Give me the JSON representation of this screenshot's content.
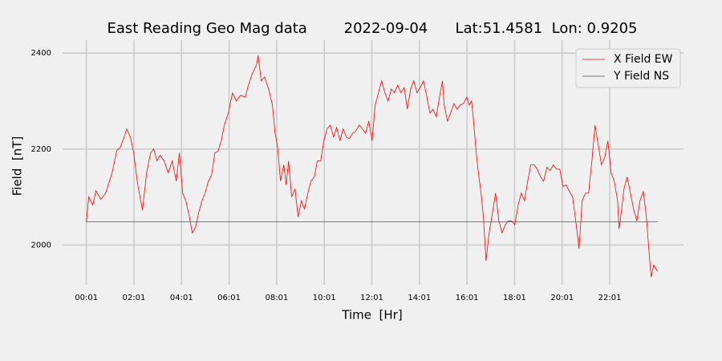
{
  "chart_data": {
    "type": "line",
    "title": "East Reading Geo Mag data        2022-09-04      Lat:51.4581  Lon: 0.9205",
    "xlabel": "Time  [Hr]",
    "ylabel": "Field  [nT]",
    "xlim": [
      -1.0,
      25.1
    ],
    "ylim": [
      1917,
      2427
    ],
    "xticks": [
      {
        "value": 0,
        "label": "00:01"
      },
      {
        "value": 2,
        "label": "02:01"
      },
      {
        "value": 4,
        "label": "04:01"
      },
      {
        "value": 6,
        "label": "06:01"
      },
      {
        "value": 8,
        "label": "08:01"
      },
      {
        "value": 10,
        "label": "10:01"
      },
      {
        "value": 12,
        "label": "12:01"
      },
      {
        "value": 14,
        "label": "14:01"
      },
      {
        "value": 16,
        "label": "16:01"
      },
      {
        "value": 18,
        "label": "18:01"
      },
      {
        "value": 20,
        "label": "20:01"
      },
      {
        "value": 22,
        "label": "22:01"
      }
    ],
    "yticks": [
      2000,
      2200,
      2400
    ],
    "grid": true,
    "legend": "upper right",
    "series": [
      {
        "name": "X Field EW",
        "color": "#ff0000",
        "x": [
          0,
          0.1,
          0.27,
          0.4,
          0.61,
          0.81,
          1.08,
          1.28,
          1.42,
          1.59,
          1.69,
          1.85,
          1.99,
          2.16,
          2.36,
          2.53,
          2.7,
          2.83,
          2.97,
          3.1,
          3.27,
          3.44,
          3.61,
          3.78,
          3.91,
          4.05,
          4.18,
          4.32,
          4.45,
          4.59,
          4.72,
          4.86,
          4.99,
          5.13,
          5.26,
          5.4,
          5.53,
          5.67,
          5.8,
          5.97,
          6.14,
          6.31,
          6.48,
          6.68,
          6.81,
          6.98,
          7.15,
          7.22,
          7.35,
          7.49,
          7.66,
          7.82,
          7.93,
          8.03,
          8.16,
          8.3,
          8.4,
          8.5,
          8.63,
          8.77,
          8.9,
          9.04,
          9.17,
          9.31,
          9.44,
          9.58,
          9.71,
          9.85,
          9.98,
          10.12,
          10.25,
          10.39,
          10.52,
          10.66,
          10.79,
          10.93,
          11.06,
          11.2,
          11.33,
          11.47,
          11.6,
          11.74,
          11.87,
          12.01,
          12.14,
          12.28,
          12.41,
          12.55,
          12.68,
          12.82,
          12.95,
          13.09,
          13.22,
          13.36,
          13.49,
          13.63,
          13.76,
          13.9,
          14.03,
          14.17,
          14.3,
          14.44,
          14.57,
          14.71,
          14.84,
          14.97,
          15.04,
          15.18,
          15.31,
          15.45,
          15.58,
          15.72,
          15.85,
          15.99,
          16.09,
          16.19,
          16.26,
          16.36,
          16.46,
          16.59,
          16.69,
          16.8,
          16.93,
          17.07,
          17.2,
          17.34,
          17.47,
          17.61,
          17.74,
          17.88,
          18.01,
          18.15,
          18.28,
          18.42,
          18.55,
          18.68,
          18.82,
          18.95,
          19.09,
          19.22,
          19.36,
          19.49,
          19.63,
          19.76,
          19.9,
          20.03,
          20.17,
          20.3,
          20.44,
          20.57,
          20.71,
          20.84,
          20.98,
          21.11,
          21.25,
          21.38,
          21.52,
          21.65,
          21.79,
          21.92,
          22.06,
          22.19,
          22.33,
          22.39,
          22.46,
          22.6,
          22.73,
          22.87,
          23.0,
          23.14,
          23.27,
          23.41,
          23.54,
          23.68,
          23.74,
          23.85,
          24.01
        ],
        "values": [
          2048,
          2100,
          2083,
          2113,
          2095,
          2108,
          2150,
          2197,
          2203,
          2225,
          2242,
          2225,
          2192,
          2125,
          2072,
          2150,
          2192,
          2200,
          2175,
          2187,
          2175,
          2150,
          2175,
          2133,
          2192,
          2108,
          2092,
          2062,
          2025,
          2037,
          2067,
          2092,
          2108,
          2133,
          2145,
          2192,
          2195,
          2217,
          2250,
          2275,
          2317,
          2300,
          2312,
          2308,
          2333,
          2358,
          2375,
          2395,
          2342,
          2350,
          2325,
          2292,
          2233,
          2208,
          2133,
          2167,
          2125,
          2175,
          2100,
          2117,
          2058,
          2092,
          2075,
          2108,
          2133,
          2142,
          2175,
          2175,
          2217,
          2242,
          2250,
          2225,
          2245,
          2217,
          2242,
          2225,
          2222,
          2233,
          2238,
          2250,
          2242,
          2233,
          2258,
          2217,
          2292,
          2317,
          2342,
          2317,
          2300,
          2325,
          2317,
          2333,
          2317,
          2328,
          2283,
          2325,
          2342,
          2317,
          2328,
          2342,
          2312,
          2275,
          2283,
          2267,
          2308,
          2342,
          2292,
          2258,
          2275,
          2295,
          2283,
          2292,
          2295,
          2308,
          2292,
          2300,
          2267,
          2208,
          2158,
          2108,
          2058,
          1967,
          2025,
          2067,
          2108,
          2050,
          2025,
          2042,
          2050,
          2050,
          2042,
          2083,
          2108,
          2092,
          2133,
          2167,
          2167,
          2158,
          2142,
          2133,
          2162,
          2155,
          2167,
          2158,
          2158,
          2122,
          2125,
          2112,
          2100,
          2050,
          1992,
          2092,
          2108,
          2108,
          2175,
          2250,
          2208,
          2167,
          2183,
          2217,
          2150,
          2133,
          2092,
          2033,
          2058,
          2117,
          2142,
          2108,
          2075,
          2050,
          2092,
          2112,
          2058,
          1967,
          1933,
          1958,
          1945
        ]
      },
      {
        "name": "Y Field NS",
        "color": "#555555",
        "x": [
          0,
          24.01
        ],
        "values": [
          2048,
          2048
        ]
      }
    ]
  }
}
